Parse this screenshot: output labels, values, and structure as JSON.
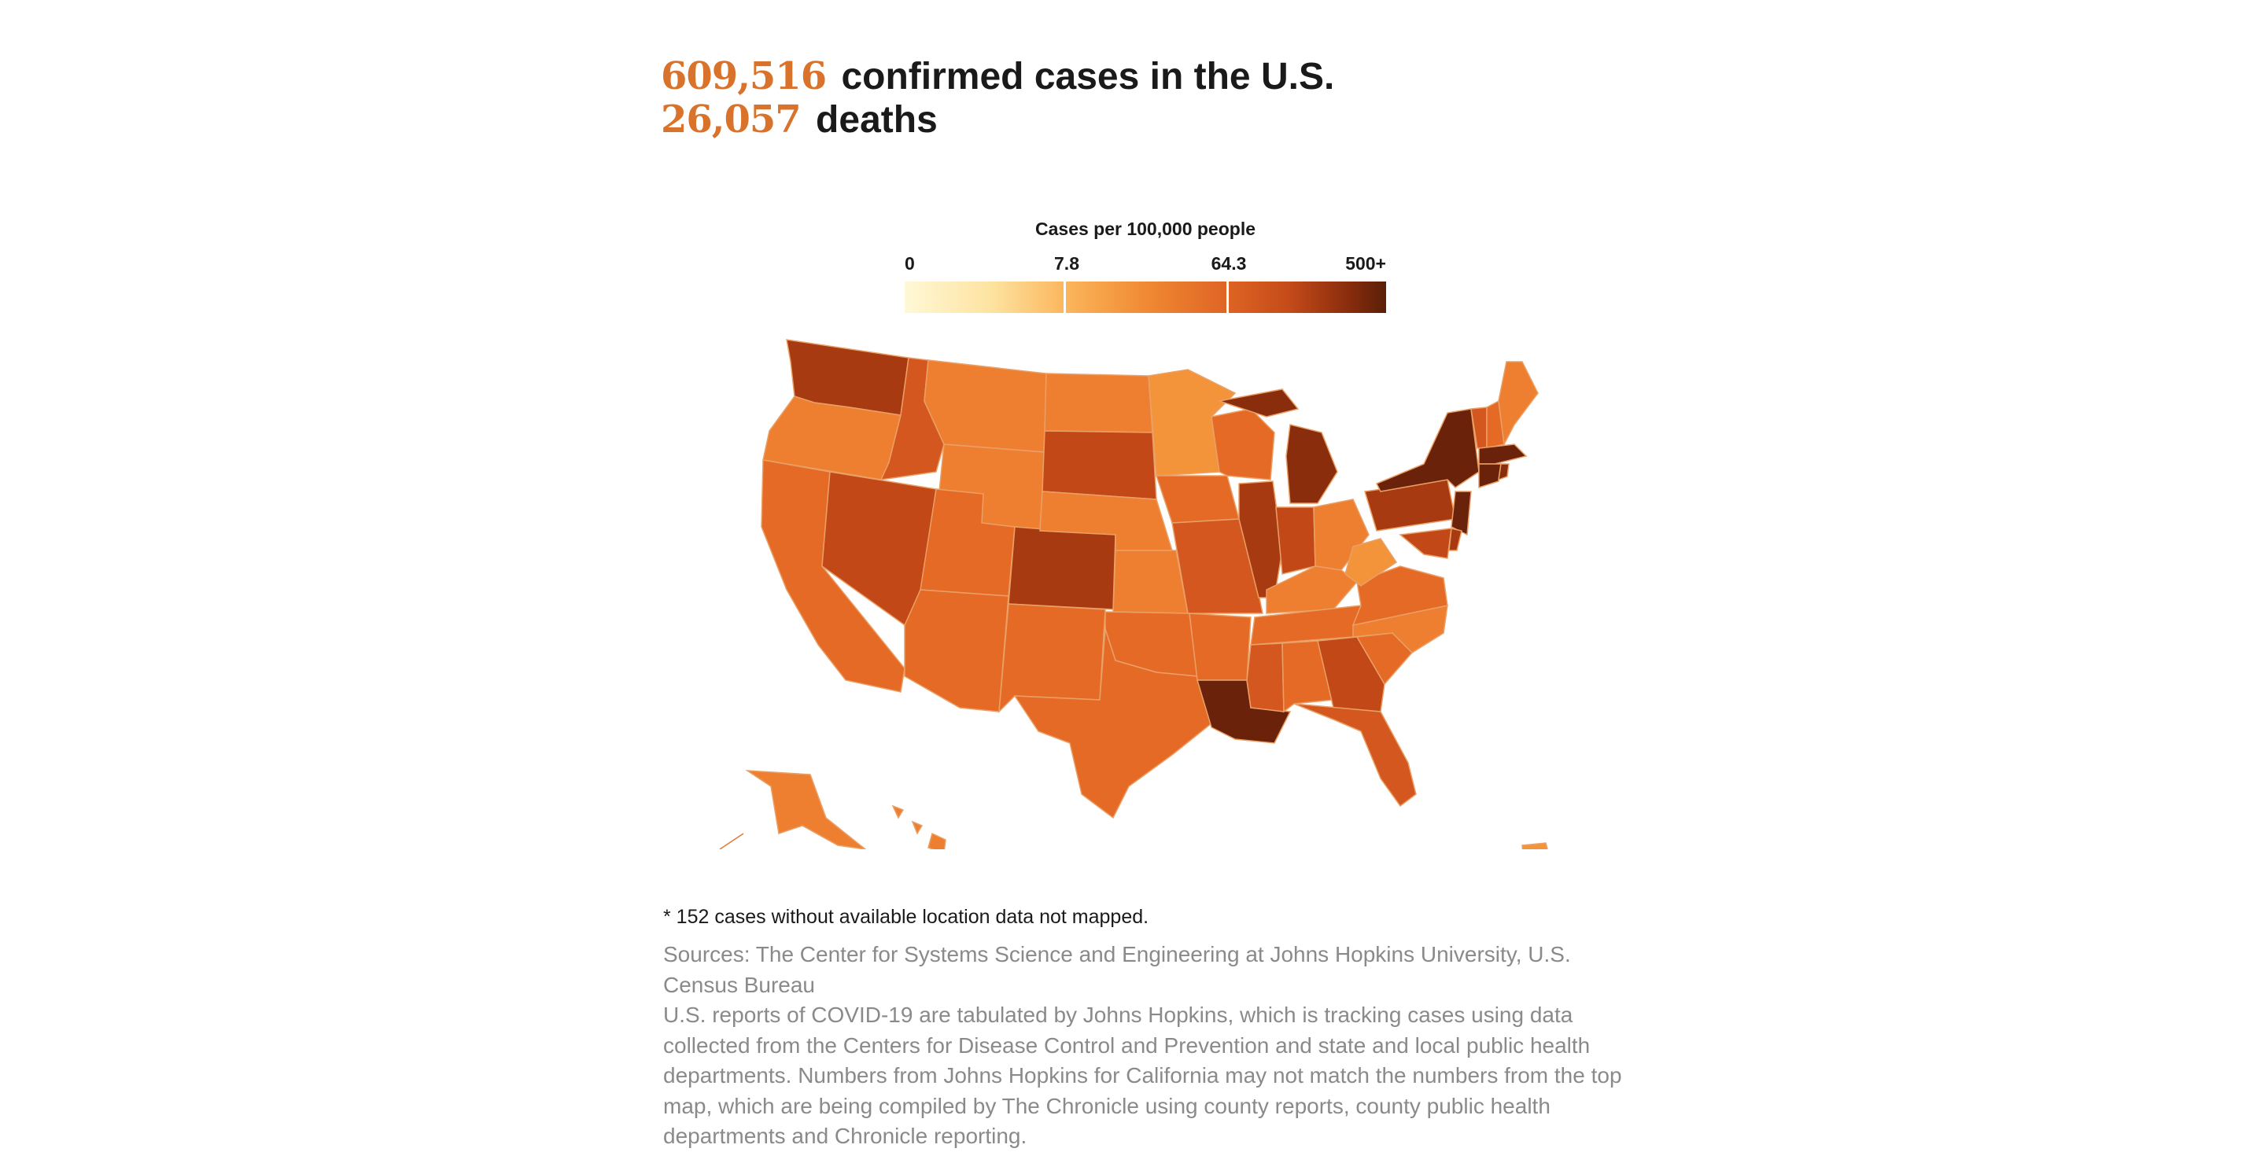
{
  "header": {
    "cases_number": "609,516",
    "cases_text": "confirmed cases in the U.S.",
    "deaths_number": "26,057",
    "deaths_text": "deaths"
  },
  "legend": {
    "title": "Cases per 100,000 people",
    "ticks": [
      "0",
      "7.8",
      "64.3",
      "500+"
    ]
  },
  "footnote": "* 152 cases without available location data not mapped.",
  "sources": {
    "line1": "Sources: The Center for Systems Science and Engineering at Johns Hopkins University, U.S. Census Bureau",
    "line2": "U.S. reports of COVID-19 are tabulated by Johns Hopkins, which is tracking cases using data collected from the Centers for Disease Control and Prevention and state and local public health departments. Numbers from Johns Hopkins for California may not match the numbers from the top map, which are being compiled by The Chronicle using county reports, county public health departments and Chronicle reporting."
  },
  "colors": {
    "accent": "#d9732b",
    "c1": "#f4943a",
    "c2": "#ee7f30",
    "c3": "#e56a26",
    "c4": "#d45720",
    "c5": "#c24818",
    "c6": "#a83a12",
    "c7": "#8a2d0d",
    "c8": "#6b220a"
  }
}
